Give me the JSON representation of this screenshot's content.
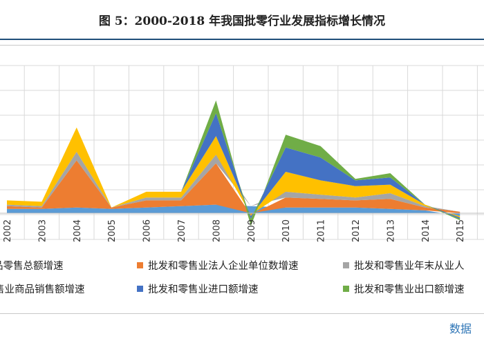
{
  "header": {
    "title": "图 5：2000-2018 年我国批零行业发展指标增长情况",
    "source": "数据"
  },
  "chart_data": {
    "type": "area",
    "stacked": true,
    "title": "图 5：2000-2018 年我国批零行业发展指标增长情况",
    "x": [
      "2002",
      "2003",
      "2004",
      "2005",
      "2006",
      "2007",
      "2008",
      "2009",
      "2010",
      "2011",
      "2012",
      "2013",
      "2014",
      "2015"
    ],
    "grid": true,
    "legend": "bottom",
    "series": [
      {
        "name": "社会消费品零售总额增速",
        "color": "#5b9bd5",
        "values": [
          3,
          3,
          4,
          3,
          4,
          5,
          6,
          5,
          4,
          4,
          4,
          3,
          2,
          -2
        ]
      },
      {
        "name": "批发和零售业法人企业单位数增速",
        "color": "#ed7d31",
        "values": [
          2,
          1,
          33,
          1,
          5,
          4,
          29,
          -1,
          7,
          6,
          5,
          7,
          2,
          1
        ]
      },
      {
        "name": "批发和零售业年末从业人员增速",
        "color": "#a5a5a5",
        "values": [
          1,
          1,
          6,
          0,
          2,
          2,
          6,
          0,
          4,
          3,
          2,
          4,
          1,
          0
        ]
      },
      {
        "name": "批发和零售业商品销售额增速",
        "color": "#ffc000",
        "values": [
          3,
          3,
          17,
          0,
          4,
          4,
          13,
          -1,
          14,
          10,
          8,
          6,
          1,
          -1
        ]
      },
      {
        "name": "批发和零售业进口额增速",
        "color": "#4472c4",
        "values": [
          0,
          0,
          0,
          0,
          0,
          0,
          16,
          -2,
          17,
          16,
          4,
          5,
          0,
          -1
        ]
      },
      {
        "name": "批发和零售业出口额增速",
        "color": "#70ad47",
        "values": [
          0,
          0,
          0,
          0,
          0,
          0,
          9,
          -5,
          9,
          8,
          1,
          3,
          0,
          -1
        ]
      }
    ],
    "legend_rows": [
      [
        {
          "label": "品零售总额增速",
          "series": 0
        },
        {
          "label": "批发和零售业法人企业单位数增速",
          "series": 1
        },
        {
          "label": "批发和零售业年末从业人",
          "series": 2
        }
      ],
      [
        {
          "label": "售业商品销售额增速",
          "series": 3
        },
        {
          "label": "批发和零售业进口额增速",
          "series": 4
        },
        {
          "label": "批发和零售业出口额增速",
          "series": 5
        }
      ]
    ]
  }
}
